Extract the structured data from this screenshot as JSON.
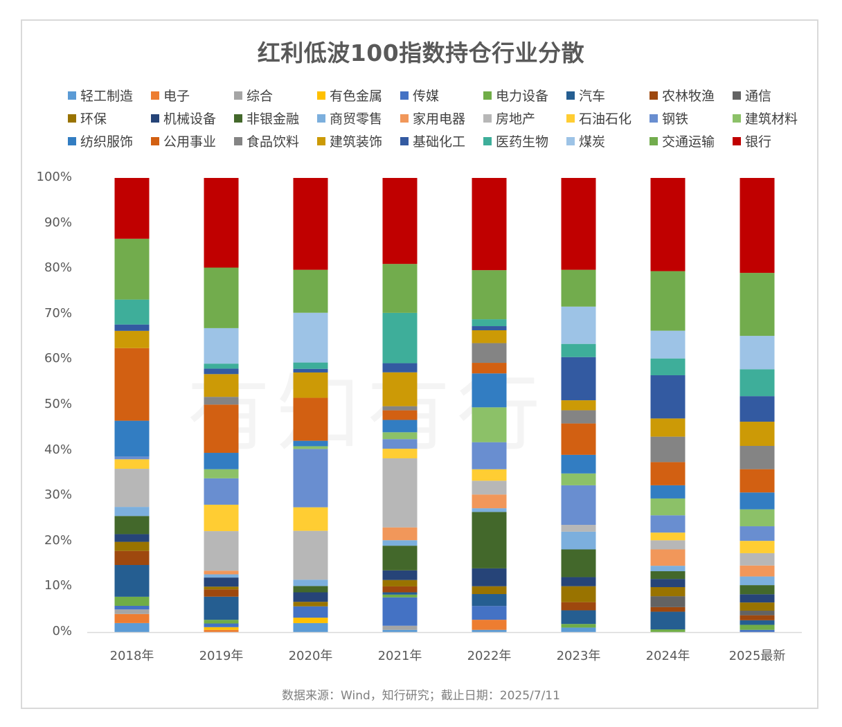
{
  "chart_data": {
    "type": "bar",
    "stacked": true,
    "percent": true,
    "title": "红利低波100指数持仓行业分散",
    "xlabel": "",
    "ylabel": "",
    "ylim": [
      0,
      100
    ],
    "yticks": [
      "0%",
      "10%",
      "20%",
      "30%",
      "40%",
      "50%",
      "60%",
      "70%",
      "80%",
      "90%",
      "100%"
    ],
    "categories": [
      "2018年",
      "2019年",
      "2020年",
      "2021年",
      "2022年",
      "2023年",
      "2024年",
      "2025最新"
    ],
    "legend_position": "top",
    "grid": false,
    "source": "数据来源：Wind，知行研究；截止日期：2025/7/11",
    "series": [
      {
        "name": "轻工制造",
        "color": "#5b9bd5",
        "values": [
          2.0,
          0.0,
          2.0,
          0.5,
          0.5,
          1.0,
          0.0,
          0.0
        ]
      },
      {
        "name": "电子",
        "color": "#ed7d31",
        "values": [
          2.0,
          0.5,
          0.0,
          0.0,
          2.2,
          0.0,
          0.0,
          0.0
        ]
      },
      {
        "name": "综合",
        "color": "#a5a5a5",
        "values": [
          1.0,
          0.0,
          0.0,
          0.9,
          0.0,
          0.0,
          0.0,
          0.0
        ]
      },
      {
        "name": "有色金属",
        "color": "#ffc000",
        "values": [
          0.0,
          0.6,
          1.2,
          0.0,
          0.0,
          0.0,
          0.0,
          0.0
        ]
      },
      {
        "name": "传媒",
        "color": "#4472c4",
        "values": [
          0.8,
          0.8,
          2.5,
          6.2,
          3.0,
          0.0,
          0.0,
          0.5
        ]
      },
      {
        "name": "电力设备",
        "color": "#70ad47",
        "values": [
          2.0,
          0.8,
          0.0,
          0.6,
          0.0,
          0.8,
          0.6,
          1.1
        ]
      },
      {
        "name": "汽车",
        "color": "#255e91",
        "values": [
          7.0,
          5.1,
          0.0,
          0.5,
          2.6,
          3.0,
          3.9,
          1.0
        ]
      },
      {
        "name": "农林牧渔",
        "color": "#9e480e",
        "values": [
          3.1,
          1.6,
          0.0,
          1.3,
          0.0,
          1.8,
          1.0,
          1.1
        ]
      },
      {
        "name": "通信",
        "color": "#636363",
        "values": [
          0.0,
          0.0,
          0.0,
          0.0,
          0.0,
          0.0,
          2.4,
          1.0
        ]
      },
      {
        "name": "环保",
        "color": "#997300",
        "values": [
          2.0,
          0.6,
          1.0,
          1.4,
          1.7,
          3.5,
          2.0,
          1.8
        ]
      },
      {
        "name": "机械设备",
        "color": "#264478",
        "values": [
          1.7,
          2.0,
          2.1,
          2.1,
          3.9,
          2.0,
          1.8,
          1.8
        ]
      },
      {
        "name": "非银金融",
        "color": "#43682b",
        "values": [
          4.0,
          0.0,
          1.4,
          5.4,
          12.3,
          6.1,
          1.7,
          2.0
        ]
      },
      {
        "name": "商贸零售",
        "color": "#7cafdd",
        "values": [
          2.0,
          0.7,
          1.4,
          1.2,
          0.8,
          3.9,
          1.2,
          1.9
        ]
      },
      {
        "name": "家用电器",
        "color": "#f1975a",
        "values": [
          0.0,
          0.8,
          0.0,
          2.8,
          3.0,
          0.0,
          3.6,
          2.4
        ]
      },
      {
        "name": "房地产",
        "color": "#b7b7b7",
        "values": [
          8.4,
          8.7,
          10.8,
          15.1,
          3.0,
          1.5,
          2.0,
          2.7
        ]
      },
      {
        "name": "石油石化",
        "color": "#ffcd33",
        "values": [
          2.1,
          5.8,
          5.2,
          2.1,
          2.5,
          0.0,
          1.7,
          2.7
        ]
      },
      {
        "name": "钢铁",
        "color": "#698ed0",
        "values": [
          0.6,
          5.8,
          12.9,
          2.1,
          5.9,
          8.7,
          3.8,
          3.2
        ]
      },
      {
        "name": "建筑材料",
        "color": "#8cc168",
        "values": [
          0.0,
          2.0,
          0.6,
          1.5,
          7.6,
          2.6,
          3.7,
          3.7
        ]
      },
      {
        "name": "纺织服饰",
        "color": "#327dc2",
        "values": [
          7.9,
          3.6,
          1.2,
          2.7,
          7.4,
          4.1,
          2.9,
          3.7
        ]
      },
      {
        "name": "公用事业",
        "color": "#d26012",
        "values": [
          16.0,
          10.6,
          9.5,
          2.1,
          2.3,
          6.9,
          5.1,
          5.1
        ]
      },
      {
        "name": "食品饮料",
        "color": "#848484",
        "values": [
          0.0,
          1.7,
          0.0,
          0.9,
          4.3,
          2.9,
          5.6,
          5.1
        ]
      },
      {
        "name": "建筑装饰",
        "color": "#cc9a06",
        "values": [
          3.8,
          5.0,
          5.6,
          7.4,
          2.8,
          2.2,
          4.0,
          5.3
        ]
      },
      {
        "name": "基础化工",
        "color": "#335aa1",
        "values": [
          1.4,
          1.2,
          0.8,
          2.0,
          0.9,
          9.5,
          9.5,
          5.6
        ]
      },
      {
        "name": "医药生物",
        "color": "#3eae9a",
        "values": [
          5.5,
          1.1,
          1.4,
          11.0,
          1.5,
          2.9,
          3.7,
          5.9
        ]
      },
      {
        "name": "煤炭",
        "color": "#9dc3e6",
        "values": [
          0.0,
          7.8,
          11.0,
          0.0,
          0.0,
          8.2,
          6.1,
          7.3
        ]
      },
      {
        "name": "交通运输",
        "color": "#72ac4d",
        "values": [
          13.4,
          13.3,
          9.5,
          10.7,
          10.7,
          8.1,
          13.1,
          13.8
        ]
      },
      {
        "name": "银行",
        "color": "#c00000",
        "values": [
          13.4,
          19.7,
          20.3,
          18.8,
          20.1,
          20.2,
          20.5,
          20.8
        ]
      }
    ]
  },
  "watermark": "有知有行"
}
